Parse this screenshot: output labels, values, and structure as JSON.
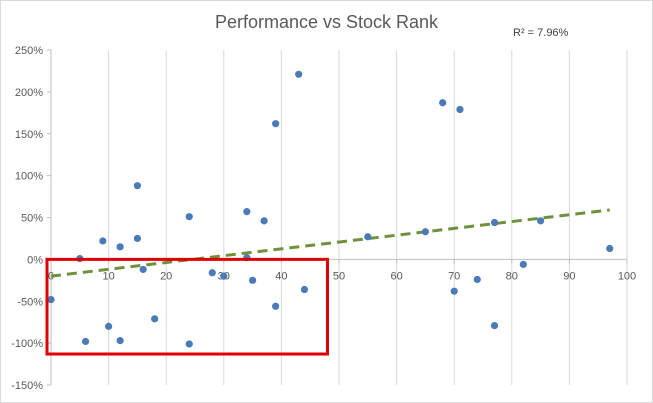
{
  "chart_data": {
    "type": "scatter",
    "title": "Performance vs Stock Rank",
    "annotation": "R² = 7.96%",
    "xlim": [
      0,
      100
    ],
    "ylim": [
      -1.5,
      2.5
    ],
    "x_ticks": [
      0,
      10,
      20,
      30,
      40,
      50,
      60,
      70,
      80,
      90,
      100
    ],
    "y_ticks": [
      2.5,
      2.0,
      1.5,
      1.0,
      0.5,
      0.0,
      -0.5,
      -1.0,
      -1.5
    ],
    "y_tick_labels": [
      "250%",
      "200%",
      "150%",
      "100%",
      "50%",
      "0%",
      "-50%",
      "-100%",
      "-150%"
    ],
    "x_tick_labels": [
      "0",
      "10",
      "20",
      "30",
      "40",
      "50",
      "60",
      "70",
      "80",
      "90",
      "100"
    ],
    "grid": "vertical",
    "points": [
      {
        "x": 0,
        "y": -0.48
      },
      {
        "x": 5,
        "y": 0.01
      },
      {
        "x": 6,
        "y": -0.98
      },
      {
        "x": 9,
        "y": 0.22
      },
      {
        "x": 10,
        "y": -0.8
      },
      {
        "x": 12,
        "y": 0.15
      },
      {
        "x": 12,
        "y": -0.97
      },
      {
        "x": 15,
        "y": 0.88
      },
      {
        "x": 15,
        "y": 0.25
      },
      {
        "x": 16,
        "y": -0.12
      },
      {
        "x": 18,
        "y": -0.71
      },
      {
        "x": 24,
        "y": 0.51
      },
      {
        "x": 24,
        "y": -1.01
      },
      {
        "x": 28,
        "y": -0.16
      },
      {
        "x": 30,
        "y": -0.2
      },
      {
        "x": 34,
        "y": 0.57
      },
      {
        "x": 34,
        "y": 0.02
      },
      {
        "x": 35,
        "y": -0.25
      },
      {
        "x": 37,
        "y": 0.46
      },
      {
        "x": 39,
        "y": 1.62
      },
      {
        "x": 39,
        "y": -0.56
      },
      {
        "x": 43,
        "y": 2.21
      },
      {
        "x": 44,
        "y": -0.36
      },
      {
        "x": 55,
        "y": 0.27
      },
      {
        "x": 65,
        "y": 0.33
      },
      {
        "x": 68,
        "y": 1.87
      },
      {
        "x": 70,
        "y": -0.38
      },
      {
        "x": 71,
        "y": 1.79
      },
      {
        "x": 74,
        "y": -0.24
      },
      {
        "x": 77,
        "y": 0.44
      },
      {
        "x": 77,
        "y": -0.79
      },
      {
        "x": 82,
        "y": -0.06
      },
      {
        "x": 85,
        "y": 0.46
      },
      {
        "x": 97,
        "y": 0.13
      }
    ],
    "trendline": {
      "x": [
        0,
        97
      ],
      "y": [
        -0.2,
        0.59
      ],
      "style": "dashed",
      "color": "#70913b"
    },
    "highlight_box": {
      "x": [
        0,
        48
      ],
      "y": [
        -1.13,
        0.0
      ],
      "color": "#e00000"
    },
    "colors": {
      "point": "#4a7ab8",
      "grid": "#d9d9d9",
      "axis": "#bfbfbf"
    }
  }
}
